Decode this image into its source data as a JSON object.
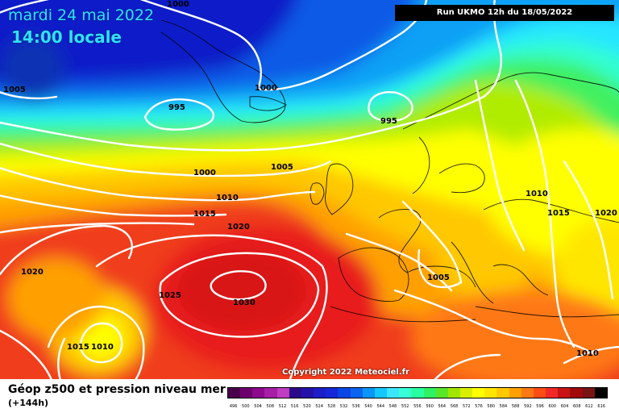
{
  "header": {
    "date": "mardi 24 mai 2022",
    "time": "14:00 locale",
    "run": "Run UKMO 12h du 18/05/2022"
  },
  "copyright": "Copyright 2022 Meteociel.fr",
  "footer": {
    "title": "Géop z500 et pression niveau mer",
    "subtitle": "(+144h)"
  },
  "isobar_labels": [
    "1000",
    "1005",
    "995",
    "1000",
    "995",
    "1000",
    "1005",
    "1010",
    "1015",
    "1020",
    "1010",
    "1015",
    "1020",
    "1020",
    "1025",
    "1030",
    "1005",
    "1015",
    "1010",
    "1010"
  ],
  "legend": {
    "values": [
      "496",
      "500",
      "504",
      "508",
      "512",
      "516",
      "520",
      "524",
      "528",
      "532",
      "536",
      "540",
      "544",
      "548",
      "552",
      "556",
      "560",
      "564",
      "568",
      "572",
      "576",
      "580",
      "584",
      "588",
      "592",
      "596",
      "600",
      "604",
      "608",
      "612",
      "616"
    ],
    "colors": [
      "#4a004a",
      "#6e006e",
      "#8c0a8c",
      "#a71ea7",
      "#c03cc0",
      "#2b0a8a",
      "#2412a8",
      "#1e1ec8",
      "#1428d8",
      "#0a46e6",
      "#0a64f0",
      "#0a96f8",
      "#14c8ff",
      "#3ce6ff",
      "#38ffd8",
      "#28ffa0",
      "#30f064",
      "#5ae628",
      "#a0e600",
      "#d8f000",
      "#ffff00",
      "#ffe600",
      "#ffc800",
      "#ffa000",
      "#ff7814",
      "#ff4b14",
      "#f02828",
      "#c81414",
      "#a00a0a",
      "#781414",
      "#000000"
    ]
  },
  "field_colors": {
    "dark_blue": "#0a1ec8",
    "blue": "#0a5ae6",
    "light_blue": "#0aa0f5",
    "cyan": "#28e6ff",
    "aqua": "#30ffd0",
    "green": "#40f060",
    "lime": "#b0ec00",
    "yellow": "#ffff00",
    "orange": "#ffa000",
    "red": "#f03c1e"
  }
}
